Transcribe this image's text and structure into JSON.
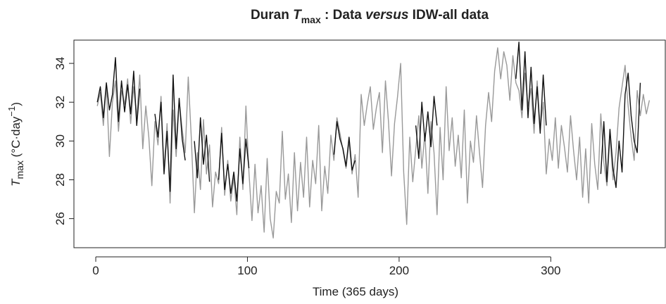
{
  "chart_data": {
    "type": "line",
    "title": [
      "Duran ",
      "T",
      "max",
      " : Data ",
      "versus",
      " IDW-all data"
    ],
    "y_label": [
      "T",
      "max",
      " (°C·day",
      "−1",
      ")"
    ],
    "x_label": "Time (365 days)",
    "xlim": [
      -14.4,
      375.5
    ],
    "ylim": [
      24.5,
      35.2
    ],
    "xticks": [
      0,
      100,
      200,
      300
    ],
    "yticks": [
      26,
      28,
      30,
      32,
      34
    ],
    "x": [
      1,
      3,
      5,
      7,
      9,
      11,
      13,
      15,
      17,
      19,
      21,
      23,
      25,
      27,
      29,
      31,
      33,
      35,
      37,
      39,
      41,
      43,
      45,
      47,
      49,
      51,
      53,
      55,
      57,
      59,
      61,
      63,
      65,
      67,
      69,
      71,
      73,
      75,
      77,
      79,
      81,
      83,
      85,
      87,
      89,
      91,
      93,
      95,
      97,
      99,
      101,
      103,
      105,
      107,
      109,
      111,
      113,
      115,
      117,
      119,
      121,
      123,
      125,
      127,
      129,
      131,
      133,
      135,
      137,
      139,
      141,
      143,
      145,
      147,
      149,
      151,
      153,
      155,
      157,
      159,
      161,
      163,
      165,
      167,
      169,
      171,
      173,
      175,
      177,
      179,
      181,
      183,
      185,
      187,
      189,
      191,
      193,
      195,
      197,
      199,
      201,
      203,
      205,
      207,
      209,
      211,
      213,
      215,
      217,
      219,
      221,
      223,
      225,
      227,
      229,
      231,
      233,
      235,
      237,
      239,
      241,
      243,
      245,
      247,
      249,
      251,
      253,
      255,
      257,
      259,
      261,
      263,
      265,
      267,
      269,
      271,
      273,
      275,
      277,
      279,
      281,
      283,
      285,
      287,
      289,
      291,
      293,
      295,
      297,
      299,
      301,
      303,
      305,
      307,
      309,
      311,
      313,
      315,
      317,
      319,
      321,
      323,
      325,
      327,
      329,
      331,
      333,
      335,
      337,
      339,
      341,
      343,
      345,
      347,
      349,
      351,
      353,
      355,
      357,
      359,
      361,
      363,
      365
    ],
    "series": [
      {
        "color": "#999999",
        "values": [
          31.8,
          32.5,
          30.8,
          32.9,
          29.2,
          32.0,
          33.1,
          30.5,
          32.6,
          31.9,
          33.2,
          30.9,
          32.8,
          31.2,
          33.4,
          29.6,
          31.8,
          30.2,
          27.7,
          31.0,
          29.8,
          32.3,
          28.5,
          30.9,
          26.8,
          31.6,
          29.2,
          32.1,
          30.6,
          29.4,
          33.3,
          30.1,
          26.3,
          29.4,
          27.5,
          31.1,
          28.3,
          29.8,
          26.6,
          28.4,
          27.8,
          30.7,
          27.2,
          29.0,
          26.9,
          28.1,
          26.2,
          30.2,
          27.5,
          31.8,
          28.4,
          25.9,
          28.8,
          26.3,
          27.7,
          25.3,
          29.1,
          26.0,
          25.0,
          27.4,
          26.8,
          30.5,
          27.0,
          28.3,
          25.8,
          29.4,
          26.4,
          28.9,
          27.1,
          30.2,
          26.6,
          29.0,
          27.8,
          30.8,
          26.4,
          28.7,
          27.3,
          30.3,
          29.0,
          31.2,
          30.4,
          29.5,
          28.6,
          30.0,
          28.3,
          29.3,
          27.1,
          32.4,
          30.8,
          31.9,
          32.8,
          30.6,
          31.7,
          32.5,
          29.4,
          33.1,
          31.0,
          28.2,
          30.9,
          32.3,
          34.0,
          28.4,
          25.7,
          30.2,
          27.9,
          29.6,
          31.3,
          28.6,
          30.4,
          27.3,
          31.0,
          29.4,
          26.2,
          30.7,
          28.0,
          32.8,
          29.5,
          31.2,
          28.7,
          30.3,
          28.1,
          31.6,
          26.8,
          30.0,
          28.9,
          31.3,
          29.4,
          27.6,
          30.8,
          32.5,
          31.0,
          33.6,
          34.8,
          33.2,
          34.6,
          33.9,
          32.1,
          34.4,
          33.0,
          32.6,
          31.2,
          33.5,
          31.8,
          32.7,
          30.4,
          33.1,
          30.6,
          32.0,
          28.3,
          30.1,
          29.0,
          31.2,
          28.6,
          30.8,
          29.7,
          28.4,
          31.3,
          29.5,
          28.0,
          30.2,
          27.1,
          29.6,
          26.8,
          30.9,
          28.8,
          27.5,
          31.4,
          28.9,
          27.7,
          30.3,
          28.0,
          29.4,
          31.7,
          32.8,
          33.9,
          31.8,
          30.2,
          29.0,
          32.6,
          31.3,
          32.4,
          31.4,
          32.1
        ]
      },
      {
        "color": "#111111",
        "values": [
          32.0,
          32.8,
          31.2,
          33.0,
          31.6,
          32.4,
          34.3,
          31.0,
          33.1,
          31.5,
          32.9,
          31.4,
          33.6,
          30.8,
          32.7,
          null,
          null,
          null,
          null,
          31.4,
          30.2,
          32.0,
          28.3,
          30.5,
          27.4,
          33.4,
          29.6,
          32.2,
          30.1,
          29.0,
          null,
          null,
          30.0,
          28.1,
          31.2,
          28.8,
          30.3,
          27.9,
          null,
          null,
          28.0,
          30.4,
          27.5,
          28.8,
          27.3,
          28.4,
          26.9,
          29.6,
          27.8,
          30.1,
          28.6,
          null,
          null,
          null,
          null,
          null,
          null,
          null,
          null,
          null,
          null,
          null,
          null,
          null,
          null,
          null,
          null,
          null,
          null,
          null,
          null,
          null,
          null,
          null,
          null,
          null,
          null,
          null,
          29.3,
          31.0,
          30.1,
          29.6,
          28.7,
          30.2,
          28.5,
          29.0,
          null,
          null,
          null,
          null,
          null,
          null,
          null,
          null,
          null,
          null,
          null,
          null,
          null,
          null,
          null,
          null,
          null,
          null,
          null,
          30.8,
          29.1,
          32.0,
          30.0,
          31.5,
          29.7,
          32.3,
          30.8,
          null,
          null,
          null,
          null,
          null,
          null,
          null,
          null,
          null,
          null,
          null,
          null,
          null,
          null,
          null,
          null,
          null,
          null,
          null,
          null,
          null,
          null,
          null,
          null,
          null,
          33.2,
          35.1,
          31.6,
          34.6,
          31.2,
          33.8,
          30.9,
          32.8,
          30.4,
          33.4,
          30.8,
          null,
          null,
          null,
          null,
          null,
          null,
          null,
          null,
          null,
          null,
          null,
          null,
          null,
          null,
          null,
          null,
          null,
          28.3,
          31.0,
          27.9,
          30.6,
          28.6,
          27.6,
          30.0,
          28.4,
          32.4,
          33.5,
          31.3,
          30.0,
          29.4,
          33.0,
          null,
          null,
          null
        ]
      }
    ]
  }
}
